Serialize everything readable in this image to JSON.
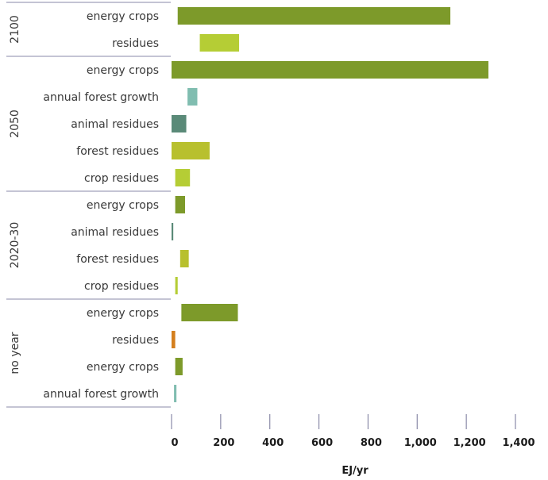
{
  "chart_data": {
    "type": "bar",
    "orientation": "horizontal",
    "xlabel": "EJ/yr",
    "xlim": [
      0,
      1400
    ],
    "xticks": [
      0,
      200,
      400,
      600,
      800,
      1000,
      1200,
      1400
    ],
    "xtick_labels": [
      "0",
      "200",
      "400",
      "600",
      "800",
      "1,000",
      "1,200",
      "1,400"
    ],
    "grid": false,
    "groups": [
      {
        "name": "2100",
        "rows": [
          {
            "label": "energy crops",
            "start": 25,
            "end": 1135,
            "color": "#7d9a2a"
          },
          {
            "label": "residues",
            "start": 115,
            "end": 275,
            "color": "#b5cd35"
          }
        ]
      },
      {
        "name": "2050",
        "rows": [
          {
            "label": "energy crops",
            "start": 0,
            "end": 1290,
            "color": "#7d9a2a"
          },
          {
            "label": "annual forest growth",
            "start": 65,
            "end": 105,
            "color": "#80bdb0"
          },
          {
            "label": "animal residues",
            "start": 0,
            "end": 60,
            "color": "#5a8a78"
          },
          {
            "label": "forest residues",
            "start": 0,
            "end": 155,
            "color": "#b8c02e"
          },
          {
            "label": "crop residues",
            "start": 15,
            "end": 75,
            "color": "#b5cd35"
          }
        ]
      },
      {
        "name": "2020-30",
        "rows": [
          {
            "label": "energy crops",
            "start": 15,
            "end": 55,
            "color": "#7d9a2a"
          },
          {
            "label": "animal residues",
            "start": 0,
            "end": 7,
            "color": "#5a8a78"
          },
          {
            "label": "forest residues",
            "start": 35,
            "end": 70,
            "color": "#b8c02e"
          },
          {
            "label": "crop residues",
            "start": 15,
            "end": 25,
            "color": "#b5cd35"
          }
        ]
      },
      {
        "name": "no year",
        "rows": [
          {
            "label": "energy crops",
            "start": 40,
            "end": 270,
            "color": "#7d9a2a"
          },
          {
            "label": "residues",
            "start": 0,
            "end": 15,
            "color": "#d47f1e"
          },
          {
            "label": "energy crops",
            "start": 15,
            "end": 45,
            "color": "#7d9a2a"
          },
          {
            "label": "annual forest growth",
            "start": 10,
            "end": 20,
            "color": "#80bdb0"
          }
        ]
      }
    ]
  }
}
